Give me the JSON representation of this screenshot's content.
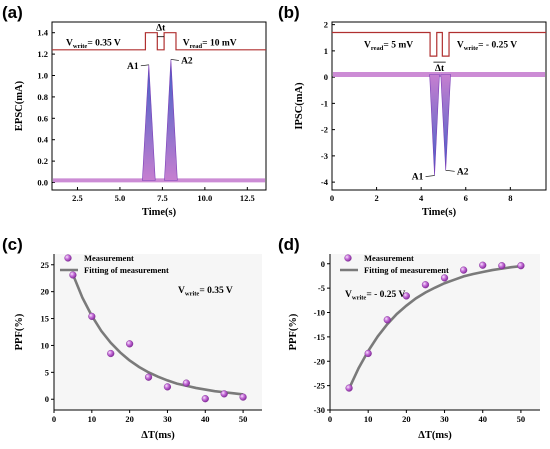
{
  "figure": {
    "panel_a_letter": "(a)",
    "panel_b_letter": "(b)",
    "panel_c_letter": "(c)",
    "panel_d_letter": "(d)"
  },
  "chart_data": [
    {
      "panel": "(a)",
      "type": "line",
      "xlabel": "Time(s)",
      "ylabel": "EPSC(mA)",
      "xlim": [
        1.0,
        13.6
      ],
      "ylim": [
        -0.07,
        1.5
      ],
      "xticks": [
        "2.5",
        "5.0",
        "7.5",
        "10.0",
        "12.5"
      ],
      "yticks": [
        "0.0",
        "0.2",
        "0.4",
        "0.6",
        "0.8",
        "1.0",
        "1.2",
        "1.4"
      ],
      "baseline": 0.02,
      "peaks": [
        {
          "label": "A1",
          "t": 6.7,
          "value": 1.1
        },
        {
          "label": "A2",
          "t": 8.0,
          "value": 1.15
        }
      ],
      "pulse": {
        "low": 1.24,
        "high": 1.4,
        "start1": 6.5,
        "end1": 7.2,
        "start2": 7.6,
        "end2": 8.3
      },
      "annotations": {
        "vwrite_V": "V",
        "vwrite_sub": "write",
        "vwrite_val": "= 0.35 V",
        "vread_V": "V",
        "vread_sub": "read",
        "vread_val": "= 10 mV",
        "dt": "Δt"
      },
      "colors": {
        "pulse": "#b03030",
        "fill": "#c67fd0",
        "peak": "#3f60c8"
      }
    },
    {
      "panel": "(b)",
      "type": "line",
      "xlabel": "Time(s)",
      "ylabel": "IPSC(mA)",
      "xlim": [
        0,
        9.6
      ],
      "ylim": [
        -4.3,
        2.1
      ],
      "xticks": [
        "0",
        "2",
        "4",
        "6",
        "8"
      ],
      "yticks": [
        "2",
        "1",
        "0",
        "-1",
        "-2",
        "-3",
        "-4"
      ],
      "baseline": 0.1,
      "peaks": [
        {
          "label": "A1",
          "t": 4.6,
          "value": -3.75
        },
        {
          "label": "A2",
          "t": 5.1,
          "value": -3.55
        }
      ],
      "pulse": {
        "high": 1.7,
        "low": 0.8,
        "start1": 4.4,
        "end1": 4.7,
        "start2": 4.95,
        "end2": 5.25
      },
      "annotations": {
        "vread_V": "V",
        "vread_sub": "read",
        "vread_val": "= 5 mV",
        "vwrite_V": "V",
        "vwrite_sub": "write",
        "vwrite_val": "= - 0.25 V",
        "dt": "Δt"
      },
      "colors": {
        "pulse": "#b03030",
        "fill": "#c67fd0",
        "peak": "#3f60c8"
      }
    },
    {
      "panel": "(c)",
      "type": "scatter",
      "xlabel": "ΔT(ms)",
      "ylabel": "PPF(%)",
      "xlim": [
        0,
        55
      ],
      "ylim": [
        -2,
        27
      ],
      "xticks": [
        0,
        10,
        20,
        30,
        40,
        50
      ],
      "yticks": [
        0,
        5,
        10,
        15,
        20,
        25
      ],
      "series": [
        {
          "name": "Measurement",
          "x": [
            5,
            10,
            15,
            20,
            25,
            30,
            35,
            40,
            45,
            50
          ],
          "y": [
            23.1,
            15.4,
            8.5,
            10.3,
            4.1,
            2.3,
            3.0,
            0.1,
            1.0,
            0.4
          ]
        },
        {
          "name": "Fitting of measurement",
          "x": [
            5,
            7.5,
            10,
            12.5,
            15,
            17.5,
            20,
            22.5,
            25,
            27.5,
            30,
            32.5,
            35,
            37.5,
            40,
            42.5,
            45,
            47.5,
            50
          ],
          "y": [
            23.2,
            18.9,
            15.5,
            12.7,
            10.5,
            8.7,
            7.2,
            6.0,
            5.0,
            4.2,
            3.5,
            2.9,
            2.5,
            2.1,
            1.8,
            1.5,
            1.3,
            1.1,
            0.9
          ]
        }
      ],
      "annotation": {
        "V": "V",
        "sub": "write",
        "val": "= 0.35 V"
      },
      "legend": "top-right",
      "colors": {
        "marker": "#b44fd0",
        "fit": "#7a7a7a"
      }
    },
    {
      "panel": "(d)",
      "type": "scatter",
      "xlabel": "ΔT(ms)",
      "ylabel": "PPF(%)",
      "xlim": [
        0,
        55
      ],
      "ylim": [
        -30,
        2
      ],
      "xticks": [
        0,
        10,
        20,
        30,
        40,
        50
      ],
      "yticks": [
        0,
        -5,
        -10,
        -15,
        -20,
        -25,
        -30
      ],
      "series": [
        {
          "name": "Measurement",
          "x": [
            5,
            10,
            15,
            20,
            25,
            30,
            35,
            40,
            45,
            50
          ],
          "y": [
            -25.5,
            -18.4,
            -11.5,
            -6.6,
            -4.3,
            -2.9,
            -1.3,
            -0.3,
            -0.4,
            -0.4
          ]
        },
        {
          "name": "Fitting of measurement",
          "x": [
            5,
            7.5,
            10,
            12.5,
            15,
            17.5,
            20,
            22.5,
            25,
            27.5,
            30,
            32.5,
            35,
            37.5,
            40,
            42.5,
            45,
            47.5,
            50
          ],
          "y": [
            -25.6,
            -21.4,
            -17.9,
            -14.9,
            -12.4,
            -10.3,
            -8.6,
            -7.1,
            -5.9,
            -4.9,
            -4.0,
            -3.3,
            -2.6,
            -2.1,
            -1.7,
            -1.3,
            -1.0,
            -0.7,
            -0.5
          ]
        }
      ],
      "annotation": {
        "V": "V",
        "sub": "write",
        "val": "= - 0.25 V"
      },
      "legend": "top-left",
      "colors": {
        "marker": "#b44fd0",
        "fit": "#7a7a7a"
      }
    }
  ]
}
